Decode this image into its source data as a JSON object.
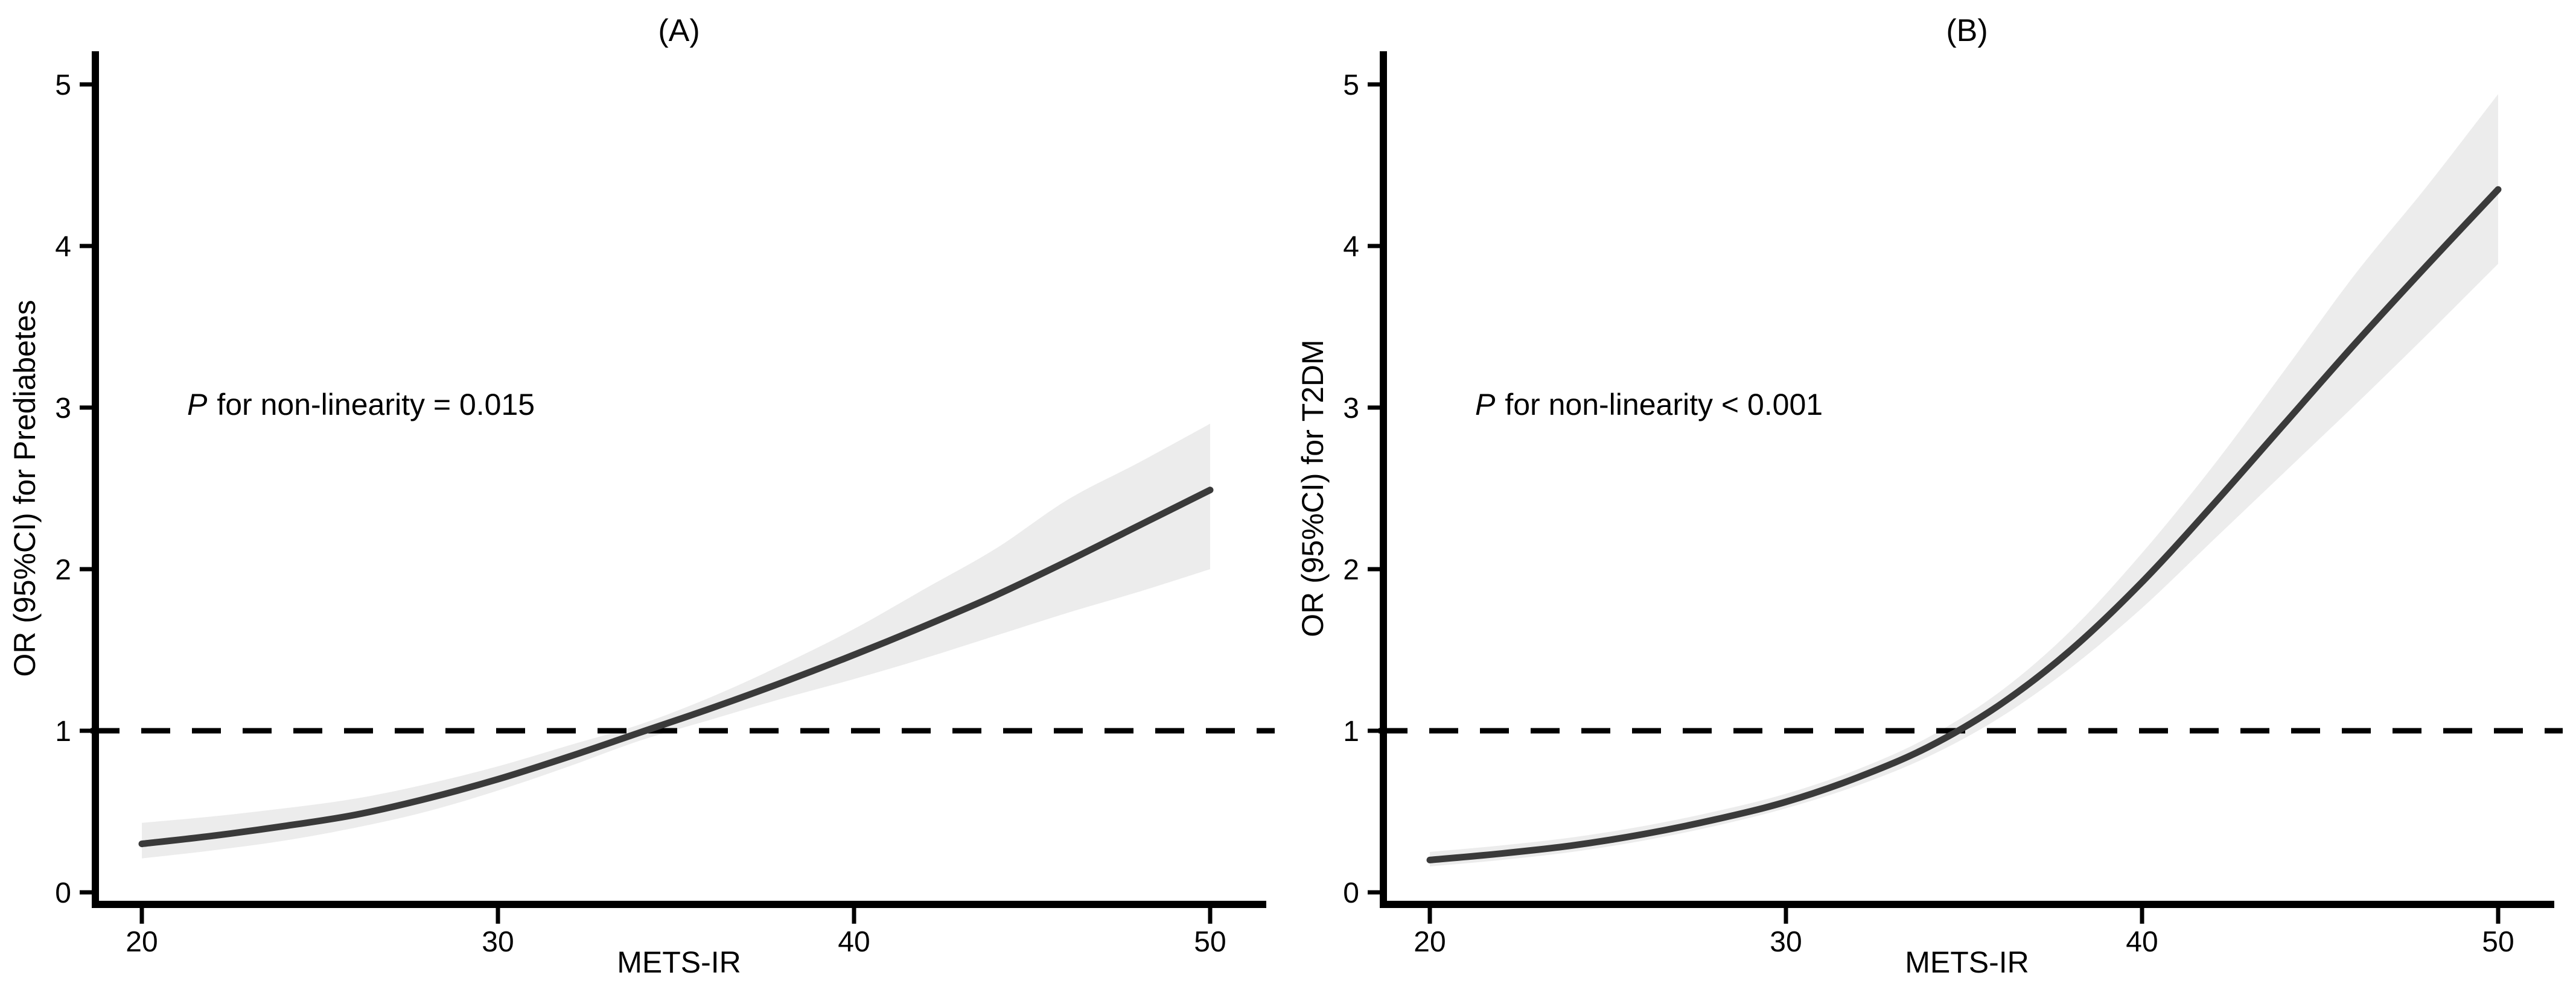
{
  "figure": {
    "background": "#ffffff"
  },
  "styles": {
    "curve_color": "#3a3a3a",
    "band_color": "#ececec",
    "axis_color": "#000000",
    "reference_line_color": "#000000",
    "text_color": "#000000"
  },
  "chart_data": [
    {
      "type": "line",
      "title": "(A)",
      "xlabel": "METS-IR",
      "ylabel": "OR (95%CI) for Prediabetes",
      "annotation": {
        "p": "P",
        "text": "for non-linearity = 0.015"
      },
      "x_ticks": [
        20,
        30,
        40,
        50
      ],
      "y_ticks": [
        0,
        1,
        2,
        3,
        4,
        5
      ],
      "xlim": [
        18.6,
        51.6
      ],
      "ylim": [
        0,
        5.3
      ],
      "grid": false,
      "legend": "none",
      "reference_line": {
        "y": 1,
        "style": "dashed"
      },
      "x": [
        20,
        22,
        24,
        26,
        28,
        30,
        32,
        34,
        36,
        38,
        40,
        42,
        44,
        46,
        48,
        50
      ],
      "series": [
        {
          "name": "OR estimate",
          "values": [
            0.3,
            0.35,
            0.41,
            0.48,
            0.58,
            0.7,
            0.84,
            0.99,
            1.14,
            1.3,
            1.47,
            1.65,
            1.84,
            2.05,
            2.27,
            2.49
          ]
        },
        {
          "name": "95% CI lower",
          "values": [
            0.21,
            0.26,
            0.32,
            0.4,
            0.5,
            0.63,
            0.78,
            0.94,
            1.07,
            1.2,
            1.32,
            1.45,
            1.59,
            1.73,
            1.86,
            2.0
          ]
        },
        {
          "name": "95% CI upper",
          "values": [
            0.43,
            0.47,
            0.52,
            0.58,
            0.67,
            0.78,
            0.91,
            1.04,
            1.21,
            1.41,
            1.63,
            1.88,
            2.13,
            2.43,
            2.66,
            2.9
          ]
        }
      ]
    },
    {
      "type": "line",
      "title": "(B)",
      "xlabel": "METS-IR",
      "ylabel": "OR (95%CI) for T2DM",
      "annotation": {
        "p": "P",
        "text": "for non-linearity < 0.001"
      },
      "x_ticks": [
        20,
        30,
        40,
        50
      ],
      "y_ticks": [
        0,
        1,
        2,
        3,
        4,
        5
      ],
      "xlim": [
        18.6,
        51.6
      ],
      "ylim": [
        0,
        5.3
      ],
      "grid": false,
      "legend": "none",
      "reference_line": {
        "y": 1,
        "style": "dashed"
      },
      "x": [
        20,
        22,
        24,
        26,
        28,
        30,
        32,
        34,
        36,
        38,
        40,
        42,
        44,
        46,
        48,
        50
      ],
      "series": [
        {
          "name": "OR estimate",
          "values": [
            0.2,
            0.24,
            0.29,
            0.36,
            0.45,
            0.56,
            0.71,
            0.9,
            1.16,
            1.5,
            1.92,
            2.4,
            2.9,
            3.4,
            3.88,
            4.35
          ]
        },
        {
          "name": "95% CI lower",
          "values": [
            0.16,
            0.2,
            0.25,
            0.32,
            0.41,
            0.52,
            0.66,
            0.84,
            1.08,
            1.39,
            1.76,
            2.18,
            2.6,
            3.02,
            3.45,
            3.89
          ]
        },
        {
          "name": "95% CI upper",
          "values": [
            0.25,
            0.29,
            0.34,
            0.41,
            0.5,
            0.61,
            0.76,
            0.96,
            1.24,
            1.62,
            2.1,
            2.64,
            3.23,
            3.83,
            4.37,
            4.94
          ]
        }
      ]
    }
  ]
}
